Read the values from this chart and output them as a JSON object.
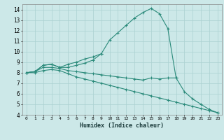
{
  "line1_x": [
    0,
    1,
    2,
    3,
    4,
    5,
    6,
    7,
    8,
    9,
    10,
    11,
    12,
    13,
    14,
    15,
    16,
    17,
    18
  ],
  "line1_y": [
    8.0,
    8.1,
    8.7,
    8.8,
    8.5,
    8.8,
    9.0,
    9.3,
    9.5,
    9.8,
    11.1,
    11.8,
    12.5,
    13.2,
    13.7,
    14.1,
    13.6,
    12.2,
    7.5
  ],
  "line2_x": [
    0,
    1,
    2,
    3,
    4,
    5,
    6,
    7,
    8,
    9
  ],
  "line2_y": [
    8.0,
    8.1,
    8.7,
    8.8,
    8.5,
    8.5,
    8.7,
    8.9,
    9.2,
    9.8
  ],
  "line3_x": [
    0,
    1,
    2,
    3,
    4,
    5,
    6,
    7,
    8,
    9,
    10,
    11,
    12,
    13,
    14,
    15,
    16,
    17,
    18,
    19,
    20,
    21,
    22,
    23
  ],
  "line3_y": [
    8.0,
    8.1,
    8.5,
    8.5,
    8.4,
    8.2,
    8.1,
    8.0,
    7.9,
    7.8,
    7.7,
    7.6,
    7.5,
    7.4,
    7.3,
    7.5,
    7.4,
    7.5,
    7.5,
    6.2,
    5.5,
    5.0,
    4.5,
    4.2
  ],
  "line4_x": [
    0,
    1,
    2,
    3,
    4,
    5,
    6,
    7,
    8,
    9,
    10,
    11,
    12,
    13,
    14,
    15,
    16,
    17,
    18,
    19,
    20,
    21,
    22,
    23
  ],
  "line4_y": [
    8.0,
    8.0,
    8.2,
    8.3,
    8.2,
    7.9,
    7.6,
    7.4,
    7.2,
    7.0,
    6.8,
    6.6,
    6.4,
    6.2,
    6.0,
    5.8,
    5.6,
    5.4,
    5.2,
    5.0,
    4.8,
    4.6,
    4.4,
    4.2
  ],
  "color": "#2a8a7a",
  "bg_color": "#cce8e8",
  "grid_color": "#aad0d0",
  "xlabel": "Humidex (Indice chaleur)",
  "xlim": [
    -0.5,
    23.5
  ],
  "ylim": [
    4,
    14.5
  ],
  "yticks": [
    4,
    5,
    6,
    7,
    8,
    9,
    10,
    11,
    12,
    13,
    14
  ],
  "xticks": [
    0,
    1,
    2,
    3,
    4,
    5,
    6,
    7,
    8,
    9,
    10,
    11,
    12,
    13,
    14,
    15,
    16,
    17,
    18,
    19,
    20,
    21,
    22,
    23
  ]
}
